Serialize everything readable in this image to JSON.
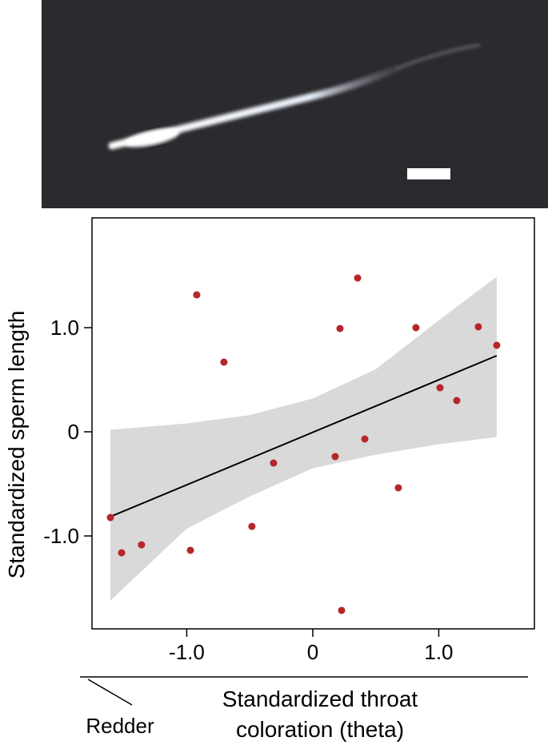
{
  "chart_data": {
    "type": "scatter",
    "ylabel": "Standardized sperm length",
    "xlabel": [
      "Standardized throat",
      "coloration (theta)"
    ],
    "annotation": "Redder",
    "color": "#b5272a",
    "x": [
      -1.606,
      -1.517,
      -1.359,
      -0.971,
      -0.921,
      -0.705,
      -0.483,
      -0.311,
      0.178,
      0.216,
      0.229,
      0.356,
      0.413,
      0.679,
      0.819,
      1.01,
      1.143,
      1.314,
      1.46
    ],
    "values": [
      -0.823,
      -1.162,
      -1.085,
      -1.138,
      1.315,
      0.669,
      -0.908,
      -0.3,
      -0.238,
      0.992,
      -1.715,
      1.477,
      -0.069,
      -0.538,
      1.0,
      0.423,
      0.3,
      1.008,
      0.831
    ],
    "fit": {
      "color": "#000000",
      "x": [
        -1.606,
        1.46
      ],
      "values": [
        -0.815,
        0.731
      ]
    },
    "band": {
      "color": "#d9d9d9",
      "x": [
        -1.606,
        -1.0,
        -0.5,
        0,
        0.5,
        1.0,
        1.46
      ],
      "upper": [
        0.02,
        0.08,
        0.16,
        0.32,
        0.6,
        1.07,
        1.49
      ],
      "lower": [
        -1.62,
        -0.93,
        -0.62,
        -0.35,
        -0.22,
        -0.12,
        -0.05
      ]
    },
    "xlim": [
      -1.752,
      1.759
    ],
    "ylim": [
      -1.892,
      2.054
    ],
    "xticks": [
      {
        "value": -1,
        "label": "-1.0"
      },
      0,
      {
        "value": 1,
        "label": "1.0"
      }
    ],
    "yticks": [
      {
        "value": -1,
        "label": "-1.0"
      },
      0,
      {
        "value": 1,
        "label": "1.0"
      }
    ],
    "grid": false
  }
}
